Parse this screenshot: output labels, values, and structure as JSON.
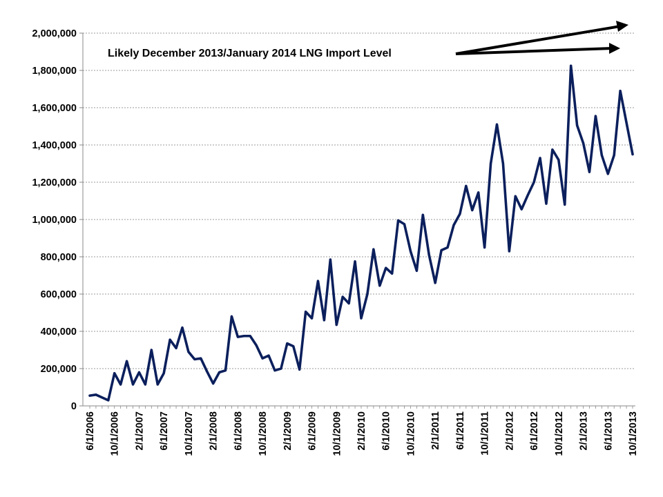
{
  "chart_data": {
    "type": "line",
    "title": "",
    "xlabel": "",
    "ylabel": "",
    "ylim": [
      0,
      2000000
    ],
    "yticks": [
      0,
      200000,
      400000,
      600000,
      800000,
      1000000,
      1200000,
      1400000,
      1600000,
      1800000,
      2000000
    ],
    "ytick_labels": [
      "0",
      "200,000",
      "400,000",
      "600,000",
      "800,000",
      "1,000,000",
      "1,200,000",
      "1,400,000",
      "1,600,000",
      "1,800,000",
      "2,000,000"
    ],
    "xtick_labels": [
      "6/1/2006",
      "10/1/2006",
      "2/1/2007",
      "6/1/2007",
      "10/1/2007",
      "2/1/2008",
      "6/1/2008",
      "10/1/2008",
      "2/1/2009",
      "6/1/2009",
      "10/1/2009",
      "2/1/2010",
      "6/1/2010",
      "10/1/2010",
      "2/1/2011",
      "6/1/2011",
      "10/1/2011",
      "2/1/2012",
      "6/1/2012",
      "10/1/2012",
      "2/1/2013",
      "6/1/2013",
      "10/1/2013"
    ],
    "grid": true,
    "line_color": "#0b1f5c",
    "series": [
      {
        "x": [
          "6/1/2006",
          "7/1/2006",
          "8/1/2006",
          "9/1/2006",
          "10/1/2006",
          "11/1/2006",
          "12/1/2006",
          "1/1/2007",
          "2/1/2007",
          "3/1/2007",
          "4/1/2007",
          "5/1/2007",
          "6/1/2007",
          "7/1/2007",
          "8/1/2007",
          "9/1/2007",
          "10/1/2007",
          "11/1/2007",
          "12/1/2007",
          "1/1/2008",
          "2/1/2008",
          "3/1/2008",
          "4/1/2008",
          "5/1/2008",
          "6/1/2008",
          "7/1/2008",
          "8/1/2008",
          "9/1/2008",
          "10/1/2008",
          "11/1/2008",
          "12/1/2008",
          "1/1/2009",
          "2/1/2009",
          "3/1/2009",
          "4/1/2009",
          "5/1/2009",
          "6/1/2009",
          "7/1/2009",
          "8/1/2009",
          "9/1/2009",
          "10/1/2009",
          "11/1/2009",
          "12/1/2009",
          "1/1/2010",
          "2/1/2010",
          "3/1/2010",
          "4/1/2010",
          "5/1/2010",
          "6/1/2010",
          "7/1/2010",
          "8/1/2010",
          "9/1/2010",
          "10/1/2010",
          "11/1/2010",
          "12/1/2010",
          "1/1/2011",
          "2/1/2011",
          "3/1/2011",
          "4/1/2011",
          "5/1/2011",
          "6/1/2011",
          "7/1/2011",
          "8/1/2011",
          "9/1/2011",
          "10/1/2011",
          "11/1/2011",
          "12/1/2011",
          "1/1/2012",
          "2/1/2012",
          "3/1/2012",
          "4/1/2012",
          "5/1/2012",
          "6/1/2012",
          "7/1/2012",
          "8/1/2012",
          "9/1/2012",
          "10/1/2012",
          "11/1/2012",
          "12/1/2012",
          "1/1/2013",
          "2/1/2013",
          "3/1/2013",
          "4/1/2013",
          "5/1/2013",
          "6/1/2013",
          "7/1/2013",
          "8/1/2013",
          "9/1/2013",
          "10/1/2013"
        ],
        "values": [
          55000,
          60000,
          45000,
          30000,
          175000,
          115000,
          240000,
          115000,
          180000,
          115000,
          300000,
          115000,
          175000,
          355000,
          310000,
          420000,
          290000,
          250000,
          255000,
          185000,
          120000,
          180000,
          190000,
          480000,
          370000,
          375000,
          375000,
          325000,
          255000,
          270000,
          190000,
          200000,
          335000,
          320000,
          195000,
          505000,
          470000,
          670000,
          460000,
          785000,
          435000,
          585000,
          550000,
          775000,
          470000,
          600000,
          840000,
          645000,
          740000,
          710000,
          995000,
          975000,
          830000,
          725000,
          1025000,
          810000,
          660000,
          835000,
          850000,
          970000,
          1030000,
          1180000,
          1050000,
          1145000,
          850000,
          1300000,
          1510000,
          1300000,
          830000,
          1125000,
          1055000,
          1130000,
          1200000,
          1330000,
          1085000,
          1375000,
          1320000,
          1080000,
          1825000,
          1505000,
          1410000,
          1255000,
          1555000,
          1345000,
          1245000,
          1345000,
          1690000,
          1520000,
          1350000
        ]
      }
    ],
    "annotation": "Likely December 2013/January  2014 LNG Import Level"
  }
}
